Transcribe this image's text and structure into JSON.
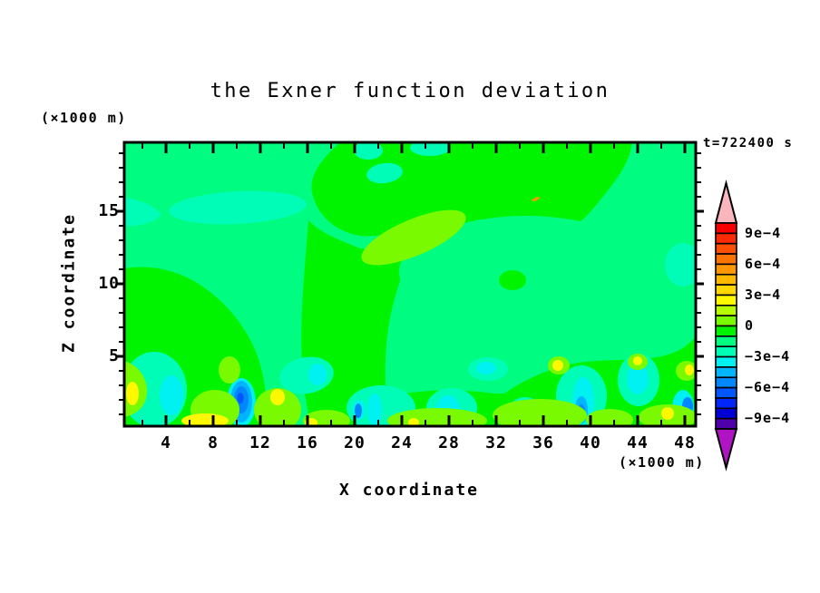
{
  "title": "the Exner function deviation",
  "time_label": "t=722400 s",
  "axes": {
    "x": {
      "label": "X coordinate",
      "unit": "(×1000 m)",
      "ticks": [
        4,
        8,
        12,
        16,
        20,
        24,
        28,
        32,
        36,
        40,
        44,
        48
      ]
    },
    "y": {
      "label": "Z coordinate",
      "unit": "(×1000 m)",
      "ticks": [
        5,
        10,
        15
      ]
    }
  },
  "colorbar": {
    "tick_labels": [
      "9e−4",
      "6e−4",
      "3e−4",
      "0",
      "−3e−4",
      "−6e−4",
      "−9e−4"
    ],
    "colors": [
      "#f90000",
      "#fb2a00",
      "#fc4f00",
      "#fd7300",
      "#fe9700",
      "#feb800",
      "#fed800",
      "#fef800",
      "#b6fb00",
      "#79fa00",
      "#00f400",
      "#00fc80",
      "#00fdb8",
      "#00f1f1",
      "#00b5fd",
      "#0087fe",
      "#0057fe",
      "#0027f8",
      "#0000d4",
      "#5000aa"
    ],
    "over_color": "#f9b6bc",
    "under_color": "#b013c3"
  },
  "chart_data": {
    "type": "filled-contour",
    "title": "the Exner function deviation",
    "time_label": "t=722400 s",
    "xlabel": "X coordinate",
    "xunit": "(×1000 m)",
    "ylabel": "Z coordinate",
    "yunit": "(×1000 m)",
    "xlim": [
      0.5,
      49
    ],
    "ylim": [
      0.2,
      19.8
    ],
    "xticks": [
      4,
      8,
      12,
      16,
      20,
      24,
      28,
      32,
      36,
      40,
      44,
      48
    ],
    "yticks": [
      5,
      10,
      15
    ],
    "value_range": [
      -0.001,
      0.001
    ],
    "contour_interval": 0.0001,
    "labeled_levels": [
      "9e-4",
      "6e-4",
      "3e-4",
      "0",
      "-3e-4",
      "-6e-4",
      "-9e-4"
    ],
    "legend_position": "right, vertical arrow-capped colorbar",
    "grid": false,
    "field_summary": "Exner function deviation is near zero aloft: slightly negative (0 to -1e-4, spring green) over most of the domain with a broad slightly positive (0 to +1e-4, green) region in the upper-middle and lower-left; strong small-scale variability below z≈5 with cyan negative patches (-2e-4 to -3e-4), blue cores down to -7e-4, and yellow positive spots up to +3e-4.",
    "features": [
      {
        "level_range": "-1e-4 to -2e-4",
        "shape": "tilted lens",
        "x": 10.1,
        "z": 15.2,
        "x_radius": 5.8,
        "z_radius": 1.1,
        "note": "aquamarine lens upper-left"
      },
      {
        "level_range": "-1e-4 to -2e-4",
        "shape": "small lens",
        "x": 22.5,
        "z": 17.6,
        "x_radius": 1.5,
        "z_radius": 0.7
      },
      {
        "level_range": "+1e-4 to +2e-4",
        "shape": "tilted band",
        "x": 25.0,
        "z": 13.2,
        "note": "chartreuse streak in mid-level green region"
      },
      {
        "level_range": "about +5e-4",
        "shape": "tiny speck",
        "x": 35.3,
        "z": 15.8,
        "note": "orange speck"
      },
      {
        "level_range": "0 to +1e-4",
        "shape": "broad region",
        "x": 30,
        "z": 15,
        "note": "green region spanning x≈18-43 upper half"
      },
      {
        "level_range": "0 to +1e-4",
        "shape": "broad region",
        "x": 6,
        "z": 3,
        "note": "green region lower-left quadrant"
      },
      {
        "level_range": "-5e-4 to -7e-4 core",
        "shape": "nested blob",
        "x": 10.4,
        "z": 2.0,
        "note": "strongest negative core, cyan→blue rings"
      },
      {
        "level_range": "-4e-4 to -5e-4",
        "shape": "spot",
        "x": 39.2,
        "z": 1.3
      },
      {
        "level_range": "-4e-4 to -5e-4",
        "shape": "spot",
        "x": 48.2,
        "z": 1.6
      },
      {
        "level_range": "-4e-4",
        "shape": "dot",
        "x": 20.3,
        "z": 1.3
      },
      {
        "level_range": "-2e-4 to -3e-4",
        "shape": "patches",
        "x": 16.5,
        "z": 2.5,
        "note": "cyan patches all along z<3 at x≈4.5, 16.5, 20.5, 28, 31, 39, 44, 48"
      },
      {
        "level_range": "+2e-4 to +3e-4",
        "shape": "strip",
        "x": 7.3,
        "z": 0.6,
        "note": "yellow strip near surface"
      },
      {
        "level_range": "+2e-4 to +3e-4",
        "shape": "spots",
        "x": 37.2,
        "z": 4.4,
        "note": "yellow spots at (13.5,2.2), (37.2,4.4), (44,4.7), (46.5,1.1), (48.4,4.1), (1.2,2.4)"
      }
    ]
  }
}
